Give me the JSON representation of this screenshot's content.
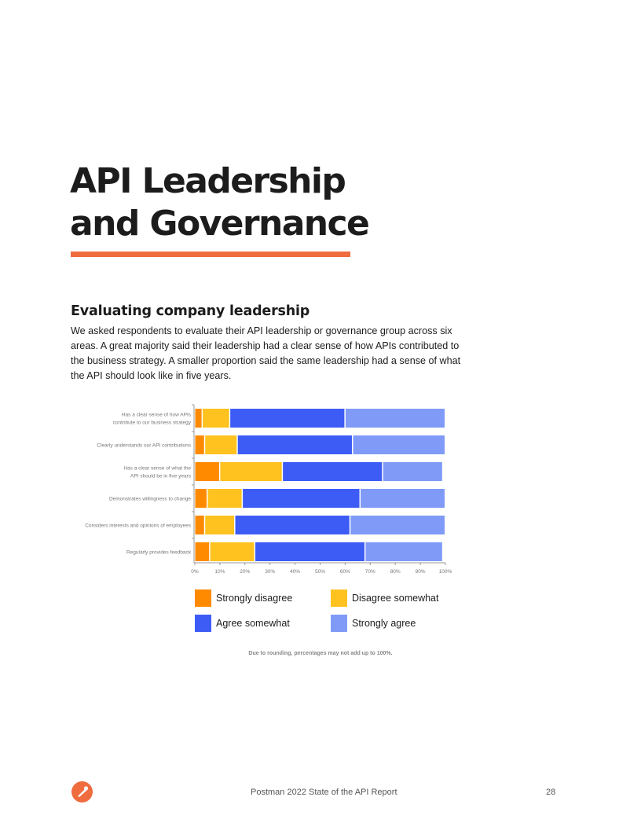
{
  "page": {
    "title_line1": "API Leadership",
    "title_line2": "and Governance",
    "accent_color": "#ef6c3f",
    "section_heading": "Evaluating company leadership",
    "section_body": "We asked respondents to evaluate their API leadership or governance group across six areas. A great majority said their leadership had a clear sense of how APIs contributed to the business strategy. A smaller proportion said the same leadership had a sense of what the API should look like in five years.",
    "footnote": "Due to rounding, percentages may not add up to 100%.",
    "footer_text": "Postman 2022 State of the API Report",
    "page_number": "28",
    "footer_logo_icon": "postman-logo-icon"
  },
  "chart_data": {
    "type": "bar",
    "orientation": "horizontal",
    "stacked": true,
    "categories": [
      [
        "Has a clear sense of how APIs",
        "contribute to our business strategy"
      ],
      [
        "Clearly understands our API contributions"
      ],
      [
        "Has a clear sense of what the",
        "API should be in five years"
      ],
      [
        "Demonstrates willingness to change"
      ],
      [
        "Considers interests and opinions of employees"
      ],
      [
        "Regularly provides feedback"
      ]
    ],
    "series": [
      {
        "name": "Strongly disagree",
        "color": "#ff8a00",
        "values": [
          3,
          4,
          10,
          5,
          4,
          6
        ]
      },
      {
        "name": "Disagree somewhat",
        "color": "#ffc21f",
        "values": [
          11,
          13,
          25,
          14,
          12,
          18
        ]
      },
      {
        "name": "Agree somewhat",
        "color": "#3d5cf5",
        "values": [
          46,
          46,
          40,
          47,
          46,
          44
        ]
      },
      {
        "name": "Strongly agree",
        "color": "#7f9af7",
        "values": [
          40,
          37,
          24,
          34,
          38,
          31
        ]
      }
    ],
    "xlim": [
      0,
      100
    ],
    "xticks": [
      "0%",
      "10%",
      "20%",
      "30%",
      "40%",
      "50%",
      "60%",
      "70%",
      "80%",
      "90%",
      "100%"
    ],
    "grid": false,
    "legend_position": "bottom"
  }
}
